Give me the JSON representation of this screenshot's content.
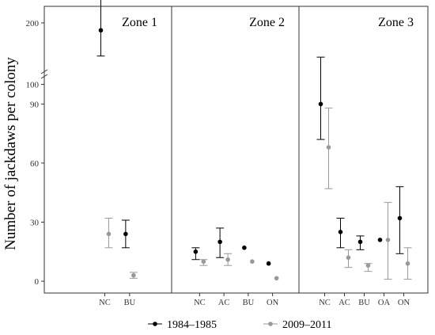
{
  "chart_data": {
    "type": "scatter",
    "ylabel": "Number of jackdaws per colony",
    "y_axis": {
      "lower_ticks": [
        0,
        30,
        60,
        90
      ],
      "upper_ticks": [
        100,
        200
      ],
      "lower_range": [
        -6,
        101
      ],
      "upper_range": [
        60,
        245
      ],
      "broken": true
    },
    "series": [
      {
        "name": "1984–1985",
        "color": "#000000"
      },
      {
        "name": "2009–2011",
        "color": "#999999"
      }
    ],
    "panels": [
      {
        "title": "Zone 1",
        "categories": [
          "NC",
          "BU"
        ],
        "points": {
          "NC": [
            {
              "series": 0,
              "mean": 180,
              "lo": 110,
              "hi": 280
            },
            {
              "series": 1,
              "mean": 24,
              "lo": 17,
              "hi": 32
            }
          ],
          "BU": [
            {
              "series": 0,
              "mean": 24,
              "lo": 17,
              "hi": 31
            },
            {
              "series": 1,
              "mean": 3,
              "lo": 1.5,
              "hi": 4.5
            }
          ]
        }
      },
      {
        "title": "Zone 2",
        "categories": [
          "NC",
          "AC",
          "BU",
          "ON"
        ],
        "points": {
          "NC": [
            {
              "series": 0,
              "mean": 15,
              "lo": 11,
              "hi": 17
            },
            {
              "series": 1,
              "mean": 10,
              "lo": 8,
              "hi": 11
            }
          ],
          "AC": [
            {
              "series": 0,
              "mean": 20,
              "lo": 12,
              "hi": 27
            },
            {
              "series": 1,
              "mean": 11,
              "lo": 8,
              "hi": 14
            }
          ],
          "BU": [
            {
              "series": 0,
              "mean": 17,
              "lo": 17,
              "hi": 17
            },
            {
              "series": 1,
              "mean": 10,
              "lo": 10,
              "hi": 10
            }
          ],
          "ON": [
            {
              "series": 0,
              "mean": 9,
              "lo": 9,
              "hi": 9
            },
            {
              "series": 1,
              "mean": 1.5,
              "lo": 1.5,
              "hi": 1.5
            }
          ]
        }
      },
      {
        "title": "Zone 3",
        "categories": [
          "NC",
          "AC",
          "BU",
          "OA",
          "ON"
        ],
        "points": {
          "NC": [
            {
              "series": 0,
              "mean": 90,
              "lo": 72,
              "hi": 107
            },
            {
              "series": 1,
              "mean": 68,
              "lo": 47,
              "hi": 88
            }
          ],
          "AC": [
            {
              "series": 0,
              "mean": 25,
              "lo": 17,
              "hi": 32
            },
            {
              "series": 1,
              "mean": 12,
              "lo": 7,
              "hi": 16
            }
          ],
          "BU": [
            {
              "series": 0,
              "mean": 20,
              "lo": 16,
              "hi": 23
            },
            {
              "series": 1,
              "mean": 8,
              "lo": 5,
              "hi": 9
            }
          ],
          "OA": [
            {
              "series": 0,
              "mean": 21,
              "lo": 21,
              "hi": 21
            },
            {
              "series": 1,
              "mean": 21,
              "lo": 1,
              "hi": 40
            }
          ],
          "ON": [
            {
              "series": 0,
              "mean": 32,
              "lo": 14,
              "hi": 48
            },
            {
              "series": 1,
              "mean": 9,
              "lo": 1,
              "hi": 17
            }
          ]
        }
      }
    ],
    "legend_position": "bottom"
  }
}
